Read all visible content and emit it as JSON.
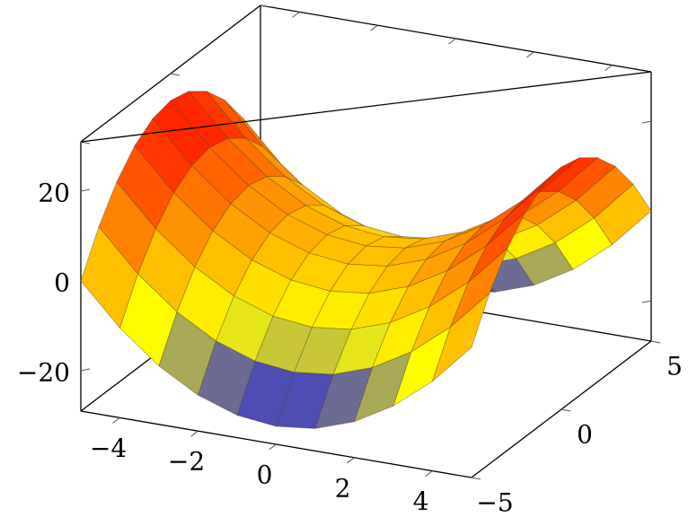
{
  "chart_data": {
    "type": "surface",
    "x": [
      -5,
      -4,
      -3,
      -2,
      -1,
      0,
      1,
      2,
      3,
      4,
      5
    ],
    "y": [
      -5,
      -4,
      -3,
      -2,
      -1,
      0,
      1,
      2,
      3,
      4,
      5
    ],
    "z": [
      [
        0,
        -9,
        -16,
        -21,
        -24,
        -25,
        -24,
        -21,
        -16,
        -9,
        0
      ],
      [
        9,
        0,
        -7,
        -12,
        -15,
        -16,
        -15,
        -12,
        -7,
        0,
        9
      ],
      [
        16,
        7,
        0,
        -5,
        -8,
        -9,
        -8,
        -5,
        0,
        7,
        16
      ],
      [
        21,
        12,
        5,
        0,
        -3,
        -4,
        -3,
        0,
        5,
        12,
        21
      ],
      [
        24,
        15,
        8,
        3,
        0,
        -1,
        0,
        3,
        8,
        15,
        24
      ],
      [
        25,
        16,
        9,
        4,
        1,
        0,
        1,
        4,
        9,
        16,
        25
      ],
      [
        24,
        15,
        8,
        3,
        0,
        -1,
        0,
        3,
        8,
        15,
        24
      ],
      [
        21,
        12,
        5,
        0,
        -3,
        -4,
        -3,
        0,
        5,
        12,
        21
      ],
      [
        16,
        7,
        0,
        -5,
        -8,
        -9,
        -8,
        -5,
        0,
        7,
        16
      ],
      [
        9,
        0,
        -7,
        -12,
        -15,
        -16,
        -15,
        -12,
        -7,
        0,
        9
      ],
      [
        0,
        -9,
        -16,
        -21,
        -24,
        -25,
        -24,
        -21,
        -16,
        -9,
        0
      ]
    ],
    "xlim": [
      -5,
      5
    ],
    "ylim": [
      -5,
      5
    ],
    "zlim": [
      -29,
      31
    ],
    "xticks": [
      {
        "value": -4,
        "label": "−4"
      },
      {
        "value": -2,
        "label": "−2"
      },
      0,
      2,
      4
    ],
    "yticks": [
      {
        "value": -5,
        "label": "−5"
      },
      0,
      5
    ],
    "zticks": [
      {
        "value": -20,
        "label": "−20"
      },
      0,
      20
    ],
    "colormap": [
      "#0000ff",
      "#ffff00",
      "#ff8000",
      "#ff0000"
    ]
  }
}
